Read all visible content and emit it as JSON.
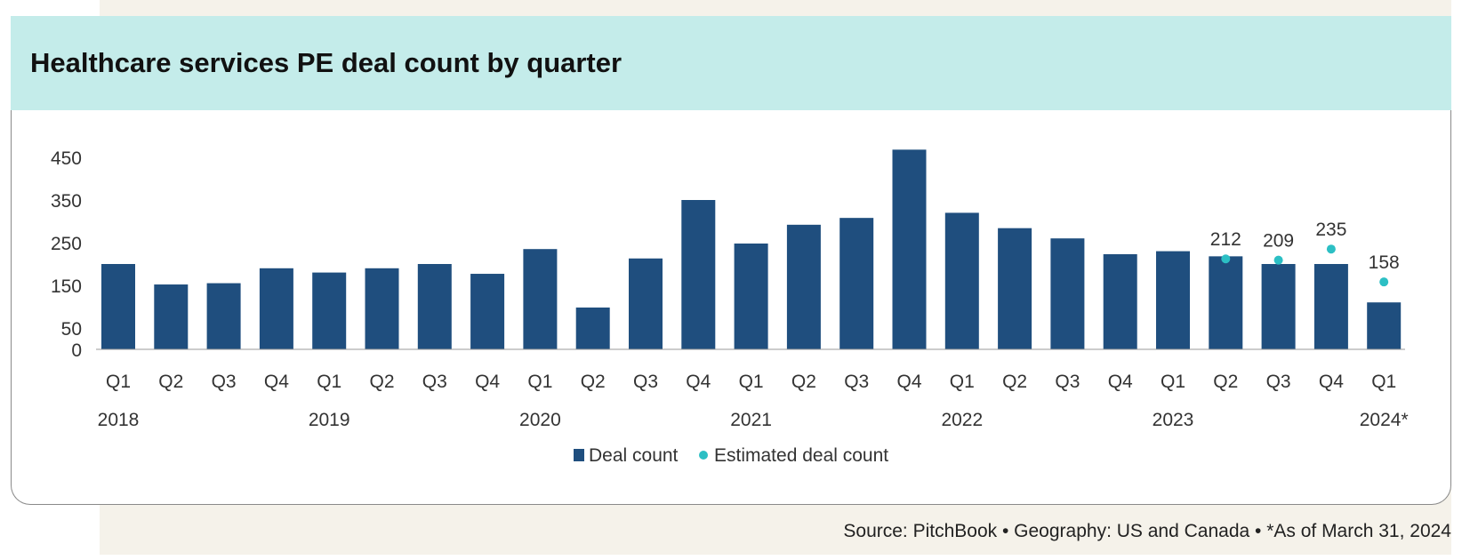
{
  "header": {
    "title": "Healthcare services PE deal count by quarter"
  },
  "source": {
    "text": "Source: PitchBook  •  Geography: US and Canada  •  *As of March 31, 2024"
  },
  "colors": {
    "bar": "#1f4e7e",
    "estimate": "#2cbfc4",
    "axis": "#999999",
    "text": "#333333"
  },
  "chart_data": {
    "type": "bar",
    "title": "Healthcare services PE deal count by quarter",
    "ylim": [
      0,
      450
    ],
    "yticks": [
      0,
      50,
      150,
      250,
      350,
      450
    ],
    "categories": [
      "Q1",
      "Q2",
      "Q3",
      "Q4",
      "Q1",
      "Q2",
      "Q3",
      "Q4",
      "Q1",
      "Q2",
      "Q3",
      "Q4",
      "Q1",
      "Q2",
      "Q3",
      "Q4",
      "Q1",
      "Q2",
      "Q3",
      "Q4",
      "Q1",
      "Q2",
      "Q3",
      "Q4",
      "Q1"
    ],
    "year_labels": [
      {
        "label": "2018",
        "index": 0
      },
      {
        "label": "2019",
        "index": 4
      },
      {
        "label": "2020",
        "index": 8
      },
      {
        "label": "2021",
        "index": 12
      },
      {
        "label": "2022",
        "index": 16
      },
      {
        "label": "2023",
        "index": 20
      },
      {
        "label": "2024*",
        "index": 24
      }
    ],
    "series": [
      {
        "name": "Deal count",
        "values": [
          200,
          152,
          155,
          190,
          180,
          190,
          200,
          177,
          235,
          98,
          213,
          350,
          248,
          292,
          308,
          468,
          320,
          284,
          260,
          223,
          230,
          218,
          200,
          200,
          110
        ]
      },
      {
        "name": "Estimated deal count",
        "values": [
          null,
          null,
          null,
          null,
          null,
          null,
          null,
          null,
          null,
          null,
          null,
          null,
          null,
          null,
          null,
          null,
          null,
          null,
          null,
          null,
          null,
          212,
          209,
          235,
          158
        ],
        "labels": [
          null,
          null,
          null,
          null,
          null,
          null,
          null,
          null,
          null,
          null,
          null,
          null,
          null,
          null,
          null,
          null,
          null,
          null,
          null,
          null,
          null,
          "212",
          "209",
          "235",
          "158"
        ]
      }
    ],
    "legend": [
      "Deal count",
      "Estimated deal count"
    ]
  }
}
